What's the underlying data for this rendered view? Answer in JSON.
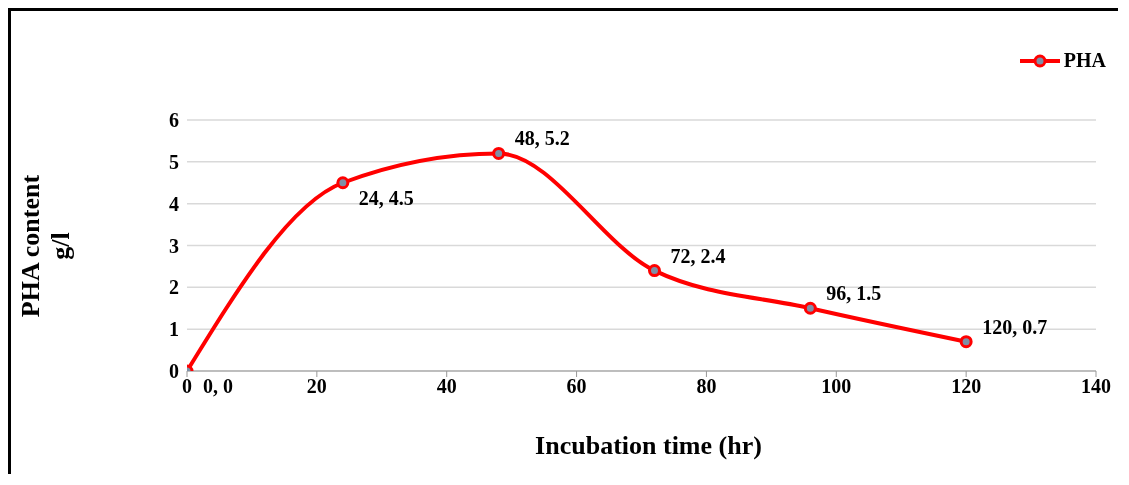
{
  "chart_data": {
    "type": "line",
    "xlabel": "Incubation time (hr)",
    "ylabel": "PHA content g/l",
    "x": [
      0,
      24,
      48,
      72,
      96,
      120
    ],
    "series": [
      {
        "name": "PHA",
        "color": "#ff0000",
        "values": [
          0,
          4.5,
          5.2,
          2.4,
          1.5,
          0.7
        ],
        "value_labels": [
          "0, 0",
          "24, 4.5",
          "48, 5.2",
          "72, 2.4",
          "96, 1.5",
          "120, 0.7"
        ]
      }
    ],
    "xlim": [
      0,
      140
    ],
    "xticks": [
      0,
      20,
      40,
      60,
      80,
      100,
      120,
      140
    ],
    "ylim": [
      0,
      6
    ],
    "yticks": [
      0,
      1,
      2,
      3,
      4,
      5,
      6
    ],
    "grid": "y",
    "legend": "top right",
    "marker": "circle",
    "line_style": "solid"
  }
}
